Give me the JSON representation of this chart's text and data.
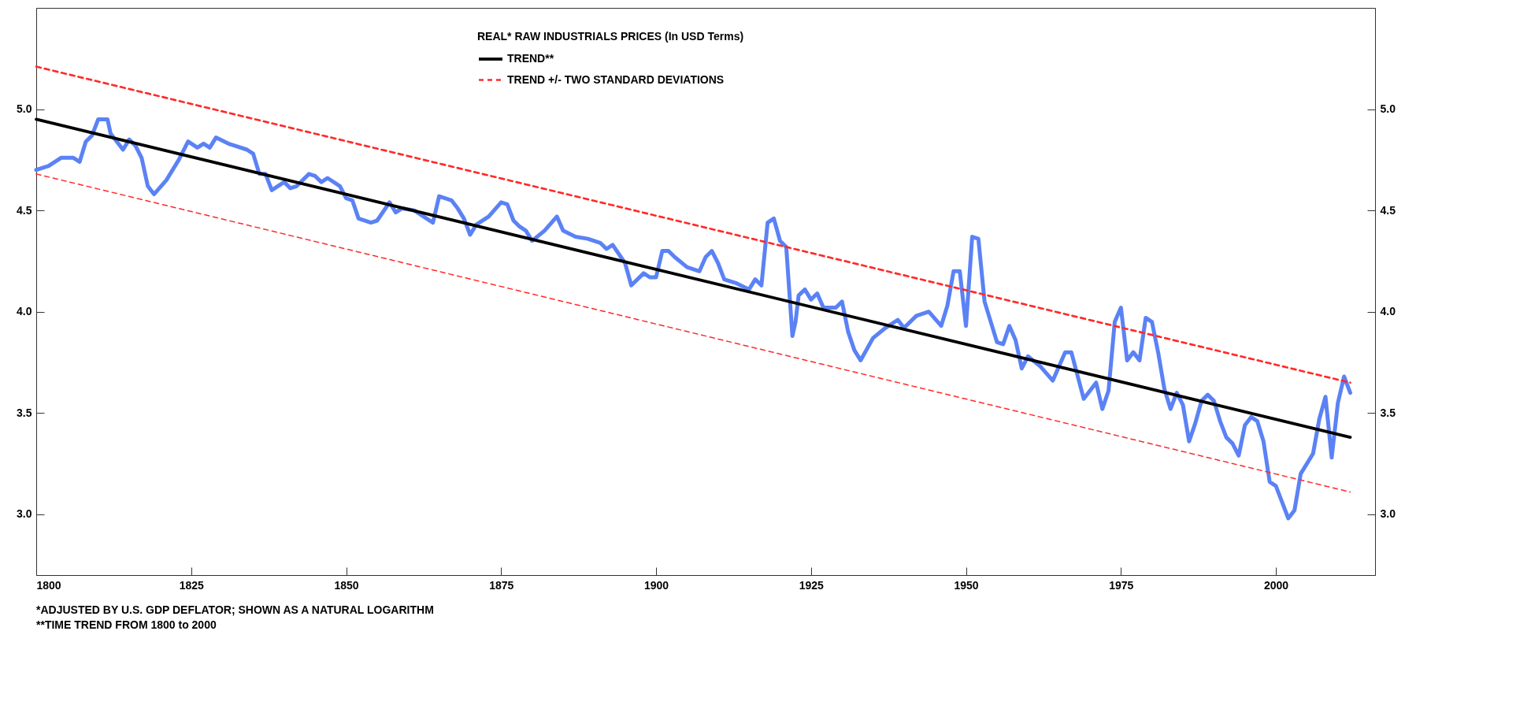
{
  "chart_data": {
    "type": "line",
    "legend_title": "REAL* RAW INDUSTRIALS PRICES (In USD Terms)",
    "legend": "top",
    "annotations": [
      "*ADJUSTED BY U.S. GDP DEFLATOR; SHOWN AS A NATURAL LOGARITHM",
      "**TIME TREND FROM 1800 to 2000"
    ],
    "xlim": [
      1800,
      2016
    ],
    "xticks": [
      1800,
      1825,
      1850,
      1875,
      1900,
      1925,
      1950,
      1975,
      2000
    ],
    "ylim": [
      2.7,
      5.5
    ],
    "yticks": [
      {
        "value": 3,
        "label": "3.0"
      },
      3.5,
      {
        "value": 4,
        "label": "4.0"
      },
      4.5,
      {
        "value": 5,
        "label": "5.0"
      }
    ],
    "y2lim": [
      2.7,
      5.5
    ],
    "y2ticks": [
      {
        "value": 3,
        "label": "3.0"
      },
      3.5,
      {
        "value": 4,
        "label": "4.0"
      },
      4.5,
      {
        "value": 5,
        "label": "5.0"
      }
    ],
    "grid": false,
    "marker": "none",
    "series": [
      {
        "color": "#5b82f5",
        "x": [
          1800,
          1802,
          1804,
          1806,
          1807,
          1808,
          1809,
          1810,
          1811.5,
          1812,
          1814,
          1815,
          1816,
          1817,
          1818,
          1819,
          1821,
          1823,
          1824.5,
          1826,
          1827,
          1828,
          1829,
          1831,
          1832,
          1834,
          1835,
          1836,
          1837,
          1838,
          1840,
          1841,
          1842,
          1844,
          1845,
          1846,
          1847,
          1849,
          1850,
          1851,
          1852,
          1854,
          1855,
          1857,
          1858,
          1859,
          1861,
          1862,
          1864,
          1865,
          1867,
          1868,
          1869,
          1870,
          1871,
          1873,
          1875,
          1876,
          1877,
          1878,
          1879,
          1880,
          1882,
          1884,
          1885,
          1887,
          1889,
          1891,
          1892,
          1893,
          1895,
          1896,
          1898,
          1899,
          1900,
          1901,
          1902,
          1903,
          1905,
          1907,
          1908,
          1909,
          1910,
          1911,
          1913,
          1915,
          1916,
          1917,
          1918,
          1919,
          1920,
          1921,
          1922,
          1922.5,
          1923,
          1924,
          1925,
          1926,
          1927,
          1929,
          1930,
          1931,
          1932,
          1933,
          1935,
          1937,
          1939,
          1940,
          1942,
          1944,
          1946,
          1947,
          1948,
          1949,
          1950,
          1951,
          1952,
          1953,
          1955,
          1956,
          1957,
          1958,
          1959,
          1960,
          1962,
          1964,
          1966,
          1967,
          1969,
          1971,
          1972,
          1973,
          1974,
          1975,
          1976,
          1977,
          1978,
          1979,
          1980,
          1981,
          1982,
          1983,
          1984,
          1985,
          1986,
          1987,
          1988,
          1989,
          1990,
          1991,
          1992,
          1993,
          1994,
          1995,
          1996,
          1997,
          1998,
          1999,
          2000,
          2001,
          2002,
          2003,
          2004,
          2005,
          2006,
          2007,
          2008,
          2009,
          2010,
          2011,
          2012
        ],
        "values": [
          4.7,
          4.72,
          4.76,
          4.76,
          4.74,
          4.84,
          4.87,
          4.95,
          4.95,
          4.88,
          4.8,
          4.85,
          4.82,
          4.76,
          4.62,
          4.58,
          4.65,
          4.75,
          4.84,
          4.81,
          4.83,
          4.81,
          4.86,
          4.83,
          4.82,
          4.8,
          4.78,
          4.68,
          4.68,
          4.6,
          4.64,
          4.61,
          4.62,
          4.68,
          4.67,
          4.64,
          4.66,
          4.62,
          4.56,
          4.55,
          4.46,
          4.44,
          4.45,
          4.54,
          4.49,
          4.51,
          4.5,
          4.48,
          4.44,
          4.57,
          4.55,
          4.51,
          4.46,
          4.38,
          4.43,
          4.47,
          4.54,
          4.53,
          4.45,
          4.42,
          4.4,
          4.35,
          4.4,
          4.47,
          4.4,
          4.37,
          4.36,
          4.34,
          4.31,
          4.33,
          4.24,
          4.13,
          4.19,
          4.17,
          4.17,
          4.3,
          4.3,
          4.27,
          4.22,
          4.2,
          4.27,
          4.3,
          4.24,
          4.16,
          4.14,
          4.11,
          4.16,
          4.13,
          4.44,
          4.46,
          4.35,
          4.32,
          3.88,
          3.95,
          4.08,
          4.11,
          4.06,
          4.09,
          4.02,
          4.02,
          4.05,
          3.9,
          3.81,
          3.76,
          3.87,
          3.92,
          3.96,
          3.92,
          3.98,
          4.0,
          3.93,
          4.03,
          4.2,
          4.2,
          3.93,
          4.37,
          4.36,
          4.05,
          3.85,
          3.84,
          3.93,
          3.86,
          3.72,
          3.78,
          3.73,
          3.66,
          3.8,
          3.8,
          3.57,
          3.65,
          3.52,
          3.61,
          3.95,
          4.02,
          3.76,
          3.8,
          3.76,
          3.97,
          3.95,
          3.8,
          3.62,
          3.52,
          3.6,
          3.54,
          3.36,
          3.45,
          3.56,
          3.59,
          3.56,
          3.46,
          3.38,
          3.35,
          3.29,
          3.44,
          3.48,
          3.46,
          3.36,
          3.16,
          3.14,
          3.06,
          2.98,
          3.02,
          3.2,
          3.25,
          3.3,
          3.47,
          3.58,
          3.28,
          3.55,
          3.68,
          3.6
        ]
      },
      {
        "name": "TREND**",
        "color": "#000000",
        "x": [
          1800,
          2012
        ],
        "values": [
          4.95,
          3.38
        ]
      },
      {
        "name": "TREND +/- TWO STANDARD DEVIATIONS",
        "color": "#ff2a2a",
        "line_style": "dashed",
        "x": [
          1800,
          2012
        ],
        "values": [
          5.21,
          3.65
        ]
      },
      {
        "color": "#ff2a2a",
        "line_style": "dashed",
        "x": [
          1800,
          2012
        ],
        "values": [
          4.68,
          3.11
        ]
      }
    ]
  }
}
